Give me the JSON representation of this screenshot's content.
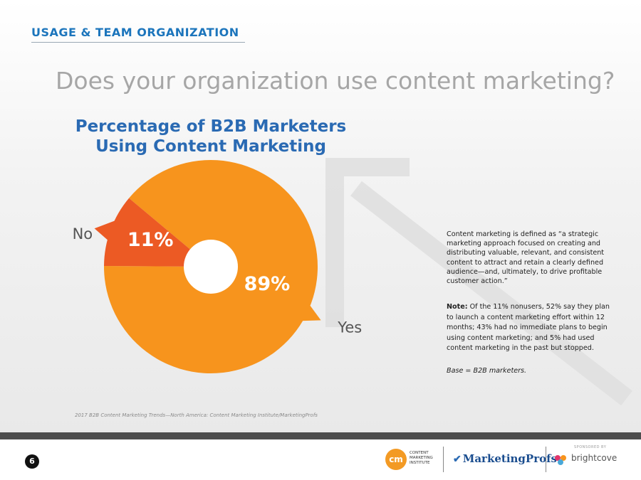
{
  "header": {
    "section_label": "USAGE & TEAM ORGANIZATION",
    "question": "Does your organization use content marketing?"
  },
  "chart_data": {
    "type": "pie",
    "title_lines": [
      "Percentage of B2B Marketers",
      "Using Content Marketing"
    ],
    "slices": [
      {
        "name": "Yes",
        "value": 89,
        "label": "89%",
        "color": "#f7941d"
      },
      {
        "name": "No",
        "value": 11,
        "label": "11%",
        "color": "#ec5a24"
      }
    ],
    "donut": true
  },
  "definition": "Content marketing is defined as “a strategic marketing approach focused on creating and distributing valuable, relevant, and consistent content to attract and retain a clearly defined audience—and, ultimately, to drive profitable customer action.”",
  "note": {
    "label": "Note:",
    "text": " Of the 11% nonusers, 52% say they plan to launch a content marketing effort within 12 months; 43% had no immediate plans to begin using content marketing; and 5% had used content marketing in the past but stopped."
  },
  "base": "Base = B2B marketers.",
  "source": "2017 B2B Content Marketing Trends—North America: Content Marketing Institute/MarketingProfs",
  "footer": {
    "page_number": "6",
    "cmi_initials": "cm",
    "cmi_name": "CONTENT MARKETING INSTITUTE",
    "marketingprofs": "MarketingProfs",
    "sponsored_by": "SPONSORED BY",
    "brightcove": "brightcove"
  },
  "colors": {
    "title_blue": "#2a6ab3",
    "section_blue": "#1c75bc",
    "yes_orange": "#f7941d",
    "no_orange": "#ec5a24"
  }
}
